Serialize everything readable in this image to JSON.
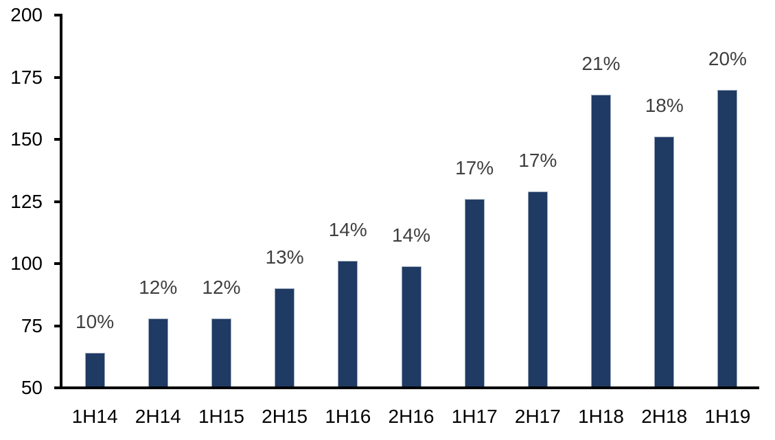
{
  "chart_data": {
    "type": "bar",
    "title": "",
    "xlabel": "",
    "ylabel": "",
    "categories": [
      "1H14",
      "2H14",
      "1H15",
      "2H15",
      "1H16",
      "2H16",
      "1H17",
      "2H17",
      "1H18",
      "2H18",
      "1H19"
    ],
    "values": [
      64,
      78,
      78,
      90,
      101,
      99,
      126,
      129,
      168,
      151,
      170
    ],
    "data_labels": [
      "10%",
      "12%",
      "12%",
      "13%",
      "14%",
      "14%",
      "17%",
      "17%",
      "21%",
      "18%",
      "20%"
    ],
    "ylim": [
      50,
      200
    ],
    "yticks": [
      50,
      75,
      100,
      125,
      150,
      175,
      200
    ],
    "grid": false,
    "legend": false,
    "colors": {
      "bar_fill": "#1f3a63",
      "bar_border": "#9aa8bc",
      "axis": "#000000",
      "axis_tick_label": "#000000",
      "data_label": "#3f3f3f",
      "background": "#ffffff"
    }
  }
}
